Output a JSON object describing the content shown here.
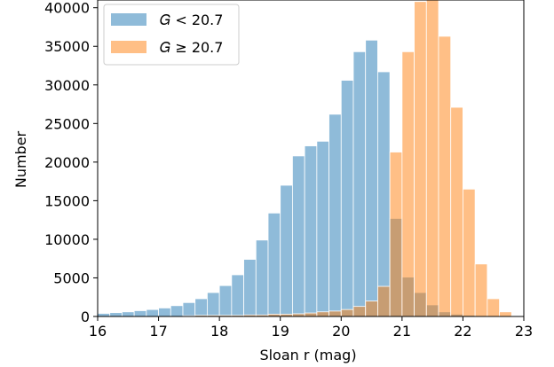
{
  "chart_data": {
    "type": "bar",
    "xlabel": "Sloan r (mag)",
    "ylabel": "Number",
    "xlim": [
      16,
      23
    ],
    "ylim": [
      0,
      41000
    ],
    "bin_width": 0.2,
    "bin_start": 16.0,
    "x_ticks": [
      "16",
      "17",
      "18",
      "19",
      "20",
      "21",
      "22",
      "23"
    ],
    "y_ticks": [
      "0",
      "5000",
      "10000",
      "15000",
      "20000",
      "25000",
      "30000",
      "35000",
      "40000"
    ],
    "grid": false,
    "legend_position": "top-left",
    "series": [
      {
        "name": "G < 20.7",
        "legend_label": "𝐺 < 20.7",
        "color": "#1f77b4",
        "alpha": 0.5,
        "values": [
          400,
          500,
          600,
          750,
          900,
          1100,
          1400,
          1800,
          2300,
          3100,
          4000,
          5400,
          7400,
          9900,
          13400,
          17000,
          20800,
          22100,
          22700,
          26200,
          30600,
          34300,
          35800,
          31700,
          12700,
          5100,
          3100,
          1500,
          600,
          300,
          150,
          80,
          40,
          20,
          10
        ]
      },
      {
        "name": "G ≥ 20.7",
        "legend_label": "𝐺 ≥ 20.7",
        "color": "#ff7f0e",
        "alpha": 0.5,
        "values": [
          0,
          0,
          0,
          0,
          0,
          0,
          0,
          100,
          150,
          150,
          150,
          150,
          200,
          200,
          300,
          300,
          350,
          450,
          600,
          700,
          900,
          1300,
          2000,
          3900,
          21300,
          34300,
          40800,
          41000,
          36300,
          27100,
          16500,
          6800,
          2300,
          600,
          100
        ]
      }
    ]
  }
}
